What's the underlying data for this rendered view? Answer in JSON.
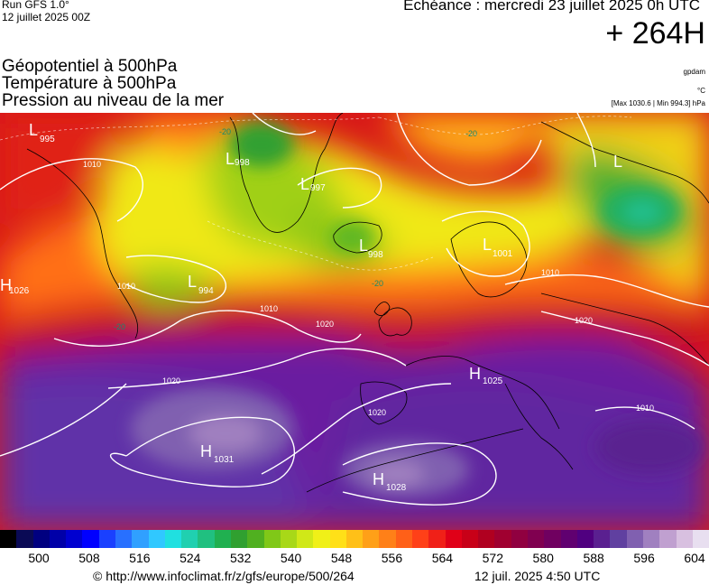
{
  "header": {
    "run": "Run GFS 1.0°",
    "run_date": "12 juillet 2025 00Z",
    "echeance": "Echéance : mercredi 23 juillet 2025 0h UTC",
    "lead_time": "+ 264H"
  },
  "fields": [
    "Géopotentiel à 500hPa",
    "Température à 500hPa",
    "Pression au niveau de la mer"
  ],
  "units": {
    "geopotential": "gpdam",
    "temperature": "°C",
    "pressure": "[Max 1030.6 | Min 994.3] hPa"
  },
  "pressure_centers": [
    {
      "type": "L",
      "value": "995"
    },
    {
      "type": "L",
      "value": "998"
    },
    {
      "type": "L",
      "value": "997"
    },
    {
      "type": "L",
      "value": "998"
    },
    {
      "type": "L",
      "value": "1001"
    },
    {
      "type": "L",
      "value": "994"
    },
    {
      "type": "H",
      "value": "1026"
    },
    {
      "type": "H",
      "value": "1025"
    },
    {
      "type": "H",
      "value": "1031"
    },
    {
      "type": "H",
      "value": "1028"
    },
    {
      "type": "L",
      "value": ""
    }
  ],
  "isobar_labels": [
    "1010",
    "1010",
    "1010",
    "1010",
    "1020",
    "1020",
    "1020",
    "1020",
    "1010"
  ],
  "temperature_labels": [
    "-20",
    "-20",
    "-20",
    "-20"
  ],
  "colorbar": {
    "colors": [
      "#000000",
      "#0a0a55",
      "#000080",
      "#0000a8",
      "#0000d0",
      "#0000ff",
      "#1a40ff",
      "#2870ff",
      "#30a0ff",
      "#30c8ff",
      "#20e0e0",
      "#20d0b0",
      "#20c080",
      "#20b050",
      "#30a030",
      "#50b020",
      "#80c818",
      "#a8d818",
      "#d0e818",
      "#f0f018",
      "#ffe018",
      "#ffc018",
      "#ffa018",
      "#ff8018",
      "#ff6018",
      "#ff4018",
      "#f02018",
      "#e00018",
      "#c80018",
      "#b00020",
      "#a00030",
      "#900040",
      "#800050",
      "#700060",
      "#600070",
      "#500080",
      "#5a2090",
      "#6040a0",
      "#8060b0",
      "#a080c0",
      "#c0a0d0",
      "#d8c0e0",
      "#e8dff0"
    ],
    "ticks": [
      "500",
      "508",
      "516",
      "524",
      "532",
      "540",
      "548",
      "556",
      "564",
      "572",
      "580",
      "588",
      "596",
      "604"
    ]
  },
  "footer": {
    "credit": "© http://www.infoclimat.fr/z/gfs/europe/500/264",
    "timestamp": "12 juil. 2025  4:50 UTC"
  }
}
